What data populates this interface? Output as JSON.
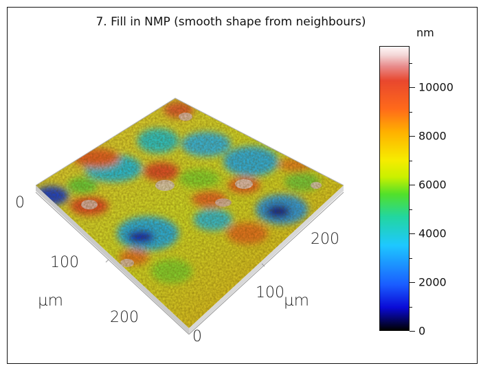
{
  "title": "7. Fill in NMP (smooth shape from neighbours)",
  "colorbar": {
    "unit": "nm",
    "ticks": [
      {
        "label": "10000",
        "value": 10000
      },
      {
        "label": "8000",
        "value": 8000
      },
      {
        "label": "6000",
        "value": 6000
      },
      {
        "label": "4000",
        "value": 4000
      },
      {
        "label": "2000",
        "value": 2000
      },
      {
        "label": "0",
        "value": 0
      }
    ],
    "max": 11700
  },
  "axes": {
    "left": {
      "origin_label": "0",
      "mid_label": "100",
      "end_label": "200",
      "unit_label": "µm"
    },
    "right": {
      "origin_label": "0",
      "mid_label": "100",
      "end_label": "200",
      "unit_label": "µm"
    }
  }
}
